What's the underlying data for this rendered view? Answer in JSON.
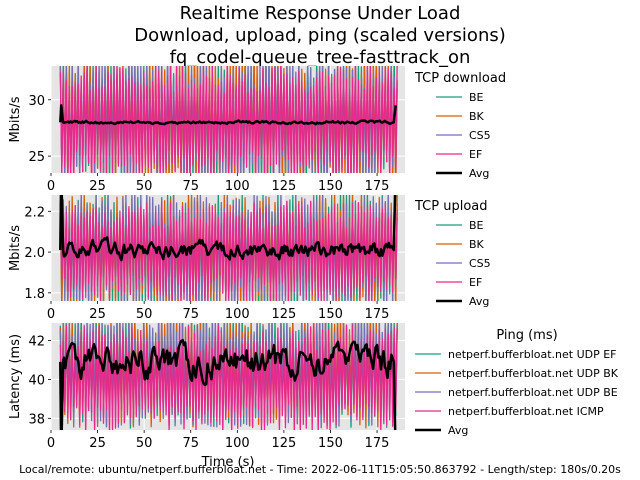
{
  "title_lines": [
    "Realtime Response Under Load",
    "Download, upload, ping (scaled versions)",
    "fq_codel-queue_tree-fasttrack_on"
  ],
  "footer": "Local/remote: ubuntu/netperf.bufferbloat.net - Time: 2022-06-11T15:05:50.863792 - Length/step: 180s/0.20s",
  "colors": {
    "BE": "#1b9e77",
    "BK": "#d95f02",
    "CS5": "#7570b3",
    "EF": "#e7298a",
    "Avg": "#000000",
    "panel_bg": "#e5e5e5",
    "grid": "#ffffff"
  },
  "chart_data": [
    {
      "type": "line",
      "name": "download",
      "ylabel": "Mbits/s",
      "xlim": [
        0,
        190
      ],
      "ylim": [
        23.5,
        33
      ],
      "yticks": [
        25,
        30
      ],
      "xticks": [
        0,
        25,
        50,
        75,
        100,
        125,
        150,
        175
      ],
      "legend_title": "TCP download",
      "series": [
        {
          "name": "BE",
          "color_key": "BE",
          "style": "oscillating",
          "center": 28,
          "amplitude": 6
        },
        {
          "name": "BK",
          "color_key": "BK",
          "style": "oscillating",
          "center": 28,
          "amplitude": 6
        },
        {
          "name": "CS5",
          "color_key": "CS5",
          "style": "oscillating",
          "center": 28,
          "amplitude": 6
        },
        {
          "name": "EF",
          "color_key": "EF",
          "style": "oscillating",
          "center": 28,
          "amplitude": 5.5
        },
        {
          "name": "Avg",
          "color_key": "Avg",
          "style": "average",
          "center": 28,
          "start": 5,
          "end": 185,
          "spike": 29.5
        }
      ]
    },
    {
      "type": "line",
      "name": "upload",
      "ylabel": "Mbits/s",
      "xlim": [
        0,
        190
      ],
      "ylim": [
        1.76,
        2.28
      ],
      "yticks": [
        1.8,
        2.0,
        2.2
      ],
      "ytick_labels": [
        "1.8",
        "2.0",
        "2.2"
      ],
      "xticks": [
        0,
        25,
        50,
        75,
        100,
        125,
        150,
        175
      ],
      "legend_title": "TCP upload",
      "series": [
        {
          "name": "BE",
          "color_key": "BE",
          "style": "oscillating",
          "center": 2.0,
          "amplitude": 0.3
        },
        {
          "name": "BK",
          "color_key": "BK",
          "style": "oscillating",
          "center": 2.0,
          "amplitude": 0.3
        },
        {
          "name": "CS5",
          "color_key": "CS5",
          "style": "oscillating",
          "center": 2.0,
          "amplitude": 0.3
        },
        {
          "name": "EF",
          "color_key": "EF",
          "style": "oscillating",
          "center": 2.0,
          "amplitude": 0.25
        },
        {
          "name": "Avg",
          "color_key": "Avg",
          "style": "average",
          "center": 2.01,
          "start": 5,
          "end": 185,
          "spike": 2.4
        }
      ]
    },
    {
      "type": "line",
      "name": "ping",
      "ylabel": "Latency (ms)",
      "xlabel": "Time (s)",
      "xlim": [
        0,
        190
      ],
      "ylim": [
        37.4,
        42.9
      ],
      "yticks": [
        38,
        40,
        42
      ],
      "xticks": [
        0,
        25,
        50,
        75,
        100,
        125,
        150,
        175
      ],
      "legend_title": "Ping (ms)",
      "series": [
        {
          "name": "netperf.bufferbloat.net UDP EF",
          "color_key": "BE",
          "style": "oscillating",
          "center": 40.5,
          "amplitude": 3
        },
        {
          "name": "netperf.bufferbloat.net UDP BK",
          "color_key": "BK",
          "style": "oscillating",
          "center": 40.5,
          "amplitude": 3
        },
        {
          "name": "netperf.bufferbloat.net UDP BE",
          "color_key": "CS5",
          "style": "oscillating",
          "center": 40.5,
          "amplitude": 3
        },
        {
          "name": "netperf.bufferbloat.net ICMP",
          "color_key": "EF",
          "style": "oscillating",
          "center": 40.0,
          "amplitude": 2.8
        },
        {
          "name": "Avg",
          "color_key": "Avg",
          "style": "average",
          "center": 40.9,
          "start": 5,
          "end": 185,
          "spike": 36
        }
      ]
    }
  ]
}
